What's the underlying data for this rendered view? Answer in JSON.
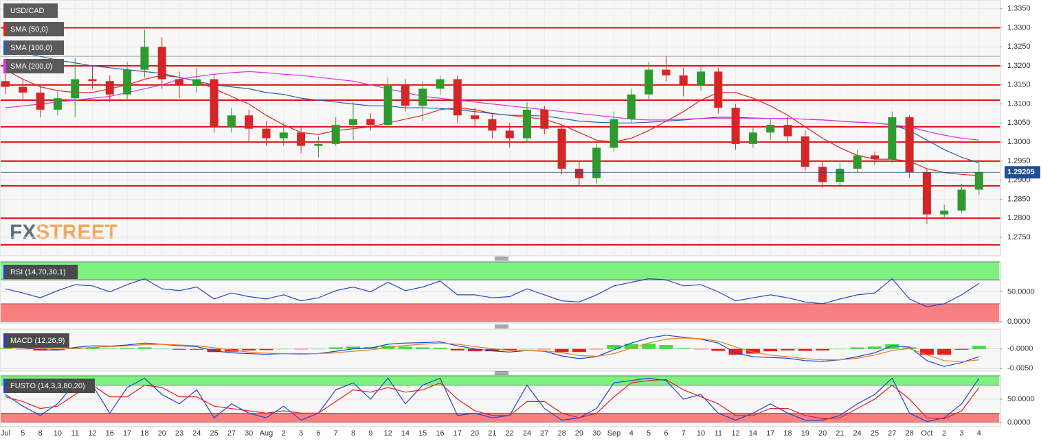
{
  "chart_data": [
    {
      "type": "candlestick",
      "title": "USD/CAD",
      "brand": [
        "FX",
        "STREET"
      ],
      "categories": [
        "Jul",
        "5",
        "8",
        "10",
        "11",
        "12",
        "16",
        "17",
        "18",
        "20",
        "23",
        "24",
        "25",
        "27",
        "30",
        "Aug",
        "2",
        "3",
        "6",
        "7",
        "8",
        "9",
        "12",
        "14",
        "15",
        "16",
        "17",
        "20",
        "21",
        "22",
        "24",
        "27",
        "28",
        "29",
        "30",
        "Sep",
        "4",
        "5",
        "6",
        "7",
        "10",
        "11",
        "12",
        "14",
        "17",
        "18",
        "19",
        "20",
        "21",
        "24",
        "25",
        "27",
        "28",
        "Oct",
        "2",
        "3",
        "4"
      ],
      "open": [
        1.316,
        1.3145,
        1.313,
        1.3085,
        1.3115,
        1.3165,
        1.316,
        1.3125,
        1.319,
        1.325,
        1.3165,
        1.315,
        1.3165,
        1.304,
        1.307,
        1.3035,
        1.301,
        1.3025,
        1.299,
        1.2995,
        1.3045,
        1.306,
        1.3045,
        1.315,
        1.3095,
        1.314,
        1.3165,
        1.307,
        1.306,
        1.303,
        1.301,
        1.3085,
        1.3035,
        1.293,
        1.2905,
        1.2985,
        1.306,
        1.3125,
        1.319,
        1.3175,
        1.315,
        1.3185,
        1.309,
        1.2995,
        1.3025,
        1.3045,
        1.3015,
        1.2935,
        1.2895,
        1.293,
        1.2965,
        1.2955,
        1.3065,
        1.292,
        1.281,
        1.282,
        1.2875
      ],
      "high": [
        1.318,
        1.3165,
        1.315,
        1.3135,
        1.322,
        1.32,
        1.3175,
        1.321,
        1.3295,
        1.3275,
        1.3185,
        1.3195,
        1.318,
        1.309,
        1.3085,
        1.3055,
        1.305,
        1.304,
        1.3015,
        1.3065,
        1.3105,
        1.3075,
        1.317,
        1.3165,
        1.316,
        1.3175,
        1.3175,
        1.309,
        1.3075,
        1.305,
        1.3105,
        1.3095,
        1.3045,
        1.295,
        1.2995,
        1.308,
        1.314,
        1.321,
        1.3225,
        1.3195,
        1.32,
        1.3195,
        1.31,
        1.304,
        1.306,
        1.3065,
        1.303,
        1.295,
        1.2945,
        1.298,
        1.2975,
        1.308,
        1.307,
        1.293,
        1.2835,
        1.289,
        1.2945
      ],
      "low": [
        1.3125,
        1.311,
        1.3065,
        1.307,
        1.3065,
        1.314,
        1.3105,
        1.311,
        1.317,
        1.314,
        1.3115,
        1.313,
        1.3025,
        1.3025,
        1.3,
        1.299,
        1.299,
        1.297,
        1.296,
        1.299,
        1.3005,
        1.303,
        1.304,
        1.308,
        1.3055,
        1.3125,
        1.305,
        1.304,
        1.301,
        1.2985,
        1.3,
        1.302,
        1.2915,
        1.2885,
        1.289,
        1.2975,
        1.305,
        1.311,
        1.316,
        1.312,
        1.3135,
        1.3075,
        1.298,
        1.2985,
        1.3005,
        1.3,
        1.2925,
        1.288,
        1.2885,
        1.292,
        1.294,
        1.2945,
        1.2905,
        1.2785,
        1.28,
        1.2815,
        1.286
      ],
      "close": [
        1.3145,
        1.313,
        1.3085,
        1.3115,
        1.3165,
        1.316,
        1.3125,
        1.319,
        1.325,
        1.3165,
        1.315,
        1.3165,
        1.304,
        1.307,
        1.3035,
        1.301,
        1.3025,
        1.299,
        1.2995,
        1.3045,
        1.306,
        1.3045,
        1.315,
        1.3095,
        1.314,
        1.3165,
        1.307,
        1.306,
        1.303,
        1.301,
        1.3085,
        1.3035,
        1.293,
        1.2905,
        1.2985,
        1.306,
        1.3125,
        1.319,
        1.3175,
        1.315,
        1.3185,
        1.309,
        1.2995,
        1.3025,
        1.3045,
        1.3015,
        1.2935,
        1.2895,
        1.293,
        1.2965,
        1.2955,
        1.3065,
        1.292,
        1.281,
        1.282,
        1.2875,
        1.29205
      ],
      "up_color": "#2e9a2e",
      "down_color": "#d42626",
      "series": [
        {
          "name": "SMA (50,0)",
          "color": "#e8211d",
          "values": [
            1.319,
            1.3165,
            1.3145,
            1.3135,
            1.313,
            1.313,
            1.314,
            1.315,
            1.3165,
            1.3175,
            1.317,
            1.316,
            1.314,
            1.312,
            1.31,
            1.307,
            1.3045,
            1.3025,
            1.302,
            1.303,
            1.3035,
            1.304,
            1.305,
            1.306,
            1.307,
            1.3085,
            1.309,
            1.3085,
            1.3075,
            1.307,
            1.3065,
            1.306,
            1.3045,
            1.3025,
            1.3005,
            1.3,
            1.301,
            1.303,
            1.3055,
            1.308,
            1.311,
            1.313,
            1.313,
            1.3115,
            1.3095,
            1.307,
            1.304,
            1.301,
            1.2985,
            1.2965,
            1.2955,
            1.2955,
            1.295,
            1.293,
            1.292,
            1.2915,
            1.2912
          ]
        },
        {
          "name": "SMA (100,0)",
          "color": "#2a5cae",
          "values": [
            1.325,
            1.3235,
            1.3225,
            1.3215,
            1.3208,
            1.32,
            1.3195,
            1.319,
            1.3185,
            1.318,
            1.317,
            1.316,
            1.315,
            1.3145,
            1.314,
            1.313,
            1.3125,
            1.3115,
            1.311,
            1.3105,
            1.31,
            1.3095,
            1.3095,
            1.309,
            1.309,
            1.3088,
            1.3085,
            1.308,
            1.3075,
            1.307,
            1.307,
            1.3068,
            1.3062,
            1.3055,
            1.3052,
            1.305,
            1.305,
            1.3052,
            1.3055,
            1.3058,
            1.3062,
            1.3065,
            1.3065,
            1.3063,
            1.3062,
            1.3062,
            1.306,
            1.3058,
            1.3055,
            1.3052,
            1.305,
            1.3045,
            1.303,
            1.3005,
            1.298,
            1.296,
            1.2945
          ]
        },
        {
          "name": "SMA (200,0)",
          "color": "#e22ee2",
          "values": [
            1.309,
            1.3095,
            1.31,
            1.3105,
            1.311,
            1.3115,
            1.312,
            1.313,
            1.314,
            1.315,
            1.3165,
            1.3172,
            1.3178,
            1.3182,
            1.3185,
            1.3182,
            1.3178,
            1.3175,
            1.317,
            1.3165,
            1.316,
            1.315,
            1.314,
            1.313,
            1.312,
            1.3115,
            1.311,
            1.3105,
            1.31,
            1.3095,
            1.309,
            1.3085,
            1.308,
            1.3075,
            1.307,
            1.3065,
            1.306,
            1.3058,
            1.3058,
            1.306,
            1.3062,
            1.3062,
            1.3062,
            1.3062,
            1.3062,
            1.3062,
            1.306,
            1.3058,
            1.3055,
            1.3052,
            1.305,
            1.3045,
            1.304,
            1.3028,
            1.3018,
            1.301,
            1.3005
          ]
        }
      ],
      "levels": [
        1.33,
        1.32,
        1.315,
        1.311,
        1.304,
        1.3,
        1.295,
        1.2885,
        1.28,
        1.273
      ],
      "level_color": "#e01010",
      "ref_lines": [
        1.3225
      ],
      "last_value": {
        "value": 1.29205,
        "label": "1.29205"
      },
      "ylim": [
        1.2703,
        1.3373
      ],
      "yticks": [
        {
          "value": 1.275,
          "label": "1.2750"
        },
        {
          "value": 1.28,
          "label": "1.2800"
        },
        {
          "value": 1.285,
          "label": "1.2850"
        },
        {
          "value": 1.29,
          "label": "1.2900"
        },
        {
          "value": 1.295,
          "label": "1.2950"
        },
        {
          "value": 1.3,
          "label": "1.3000"
        },
        {
          "value": 1.305,
          "label": "1.3050"
        },
        {
          "value": 1.31,
          "label": "1.3100"
        },
        {
          "value": 1.315,
          "label": "1.3150"
        },
        {
          "value": 1.32,
          "label": "1.3200"
        },
        {
          "value": 1.325,
          "label": "1.3250"
        },
        {
          "value": 1.33,
          "label": "1.3300"
        },
        {
          "value": 1.335,
          "label": "1.3350"
        }
      ],
      "grid": true
    },
    {
      "type": "line",
      "title": "RSI (14,70,30,1)",
      "bands": [
        {
          "from": 70,
          "to": 100,
          "color": "#7ef27e"
        },
        {
          "from": 0,
          "to": 30,
          "color": "#f88080"
        }
      ],
      "series": [
        {
          "name": "RSI",
          "color": "#2244cc",
          "values": [
            55,
            48,
            40,
            52,
            62,
            60,
            50,
            62,
            72,
            55,
            52,
            58,
            38,
            48,
            42,
            38,
            45,
            35,
            40,
            52,
            58,
            50,
            66,
            52,
            58,
            68,
            45,
            45,
            40,
            42,
            55,
            45,
            35,
            33,
            45,
            60,
            66,
            72,
            70,
            60,
            62,
            50,
            35,
            40,
            45,
            40,
            33,
            30,
            38,
            45,
            48,
            72,
            38,
            25,
            30,
            45,
            64
          ]
        }
      ],
      "ylim": [
        0,
        100
      ],
      "yticks": [
        {
          "value": 0,
          "label": "0.0000"
        },
        {
          "value": 50,
          "label": "50.0000"
        }
      ]
    },
    {
      "type": "line",
      "title": "MACD (12,26,9)",
      "series": [
        {
          "name": "MACD",
          "color": "#1c3fd1",
          "values": [
            0.0005,
            0.0003,
            -0.0002,
            -0.0003,
            0.0004,
            0.0008,
            0.0007,
            0.001,
            0.0015,
            0.0012,
            0.0008,
            0.0006,
            -0.0005,
            -0.001,
            -0.0012,
            -0.0014,
            -0.0012,
            -0.0013,
            -0.0012,
            -0.0006,
            0.0,
            0.0002,
            0.0012,
            0.0015,
            0.0016,
            0.0018,
            0.0008,
            0.0,
            -0.0005,
            -0.0008,
            -0.0004,
            -0.0006,
            -0.0018,
            -0.0025,
            -0.002,
            -0.0002,
            0.0015,
            0.0028,
            0.0035,
            0.003,
            0.0025,
            0.0015,
            -0.001,
            -0.002,
            -0.0022,
            -0.0024,
            -0.003,
            -0.0032,
            -0.0028,
            -0.002,
            -0.001,
            0.0008,
            0.0005,
            -0.003,
            -0.0045,
            -0.0035,
            -0.002
          ]
        },
        {
          "name": "Signal",
          "color": "#f07a1a",
          "values": [
            0.0003,
            0.0004,
            0.0002,
            0.0,
            0.0001,
            0.0004,
            0.0006,
            0.0008,
            0.0011,
            0.0012,
            0.001,
            0.0008,
            0.0003,
            -0.0003,
            -0.0008,
            -0.0011,
            -0.0012,
            -0.0012,
            -0.0012,
            -0.001,
            -0.0006,
            -0.0003,
            0.0004,
            0.0009,
            0.0012,
            0.0015,
            0.0012,
            0.0006,
            0.0001,
            -0.0004,
            -0.0004,
            -0.0005,
            -0.001,
            -0.0017,
            -0.0019,
            -0.0012,
            0.0002,
            0.0015,
            0.0025,
            0.0028,
            0.0026,
            0.002,
            0.0005,
            -0.0008,
            -0.0016,
            -0.002,
            -0.0025,
            -0.0028,
            -0.0028,
            -0.0024,
            -0.0016,
            -0.0004,
            0.0001,
            -0.0015,
            -0.003,
            -0.0033,
            -0.0028
          ]
        }
      ],
      "histogram": {
        "up_color": "#3ee03e",
        "down_color": "#ee1c1c",
        "values": [
          0.0002,
          -0.0001,
          -0.0004,
          -0.0003,
          0.0003,
          0.0004,
          0.0001,
          0.0002,
          0.0004,
          0.0,
          -0.0002,
          -0.0002,
          -0.0008,
          -0.0007,
          -0.0004,
          -0.0003,
          0.0,
          -0.0001,
          0.0,
          0.0004,
          0.0006,
          0.0005,
          0.0008,
          0.0006,
          0.0004,
          0.0003,
          -0.0004,
          -0.0006,
          -0.0006,
          -0.0004,
          0.0,
          -0.0001,
          -0.0008,
          -0.0008,
          -0.0001,
          0.001,
          0.0013,
          0.0013,
          0.001,
          0.0002,
          -0.0001,
          -0.0005,
          -0.0015,
          -0.0012,
          -0.0006,
          -0.0004,
          -0.0005,
          -0.0004,
          0.0,
          0.0004,
          0.0006,
          0.0012,
          0.0004,
          -0.0015,
          -0.0015,
          -0.0002,
          0.0008
        ]
      },
      "ylim": [
        -0.0055,
        0.0047
      ],
      "yticks": [
        {
          "value": 0,
          "label": "-0.0000"
        },
        {
          "value": -0.005,
          "label": "-0.0050"
        }
      ]
    },
    {
      "type": "line",
      "title": "FUSTO (14,3,3,80,20)",
      "bands": [
        {
          "from": 80,
          "to": 100,
          "color": "#7ef27e"
        },
        {
          "from": 0,
          "to": 20,
          "color": "#f88080"
        }
      ],
      "series": [
        {
          "name": "%K",
          "color": "#2244cc",
          "values": [
            60,
            35,
            15,
            40,
            85,
            80,
            20,
            75,
            95,
            60,
            40,
            70,
            10,
            40,
            20,
            10,
            35,
            5,
            20,
            70,
            85,
            50,
            95,
            40,
            80,
            95,
            15,
            20,
            10,
            15,
            80,
            30,
            5,
            10,
            30,
            85,
            90,
            95,
            90,
            50,
            60,
            20,
            5,
            20,
            40,
            20,
            5,
            5,
            15,
            40,
            60,
            95,
            20,
            2,
            10,
            40,
            95
          ]
        },
        {
          "name": "%D",
          "color": "#e02020",
          "values": [
            55,
            45,
            30,
            35,
            60,
            80,
            55,
            55,
            80,
            75,
            55,
            55,
            35,
            30,
            25,
            20,
            25,
            20,
            20,
            45,
            70,
            65,
            75,
            65,
            70,
            85,
            50,
            25,
            15,
            15,
            45,
            45,
            20,
            10,
            20,
            55,
            85,
            90,
            92,
            70,
            55,
            40,
            15,
            15,
            30,
            30,
            15,
            8,
            10,
            30,
            50,
            80,
            50,
            10,
            8,
            25,
            75
          ]
        }
      ],
      "ylim": [
        0,
        100
      ],
      "yticks": [
        {
          "value": 0,
          "label": "0.0000"
        },
        {
          "value": 50,
          "label": "50.0000"
        }
      ]
    }
  ]
}
